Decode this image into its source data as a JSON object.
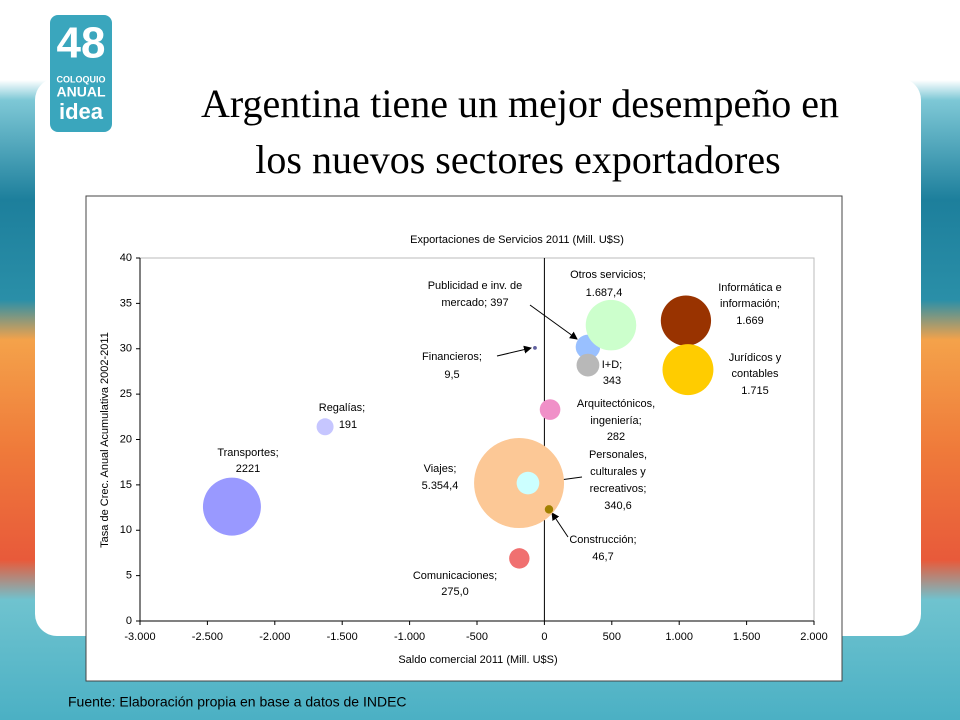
{
  "slide_title": [
    "Argentina tiene un mejor desempeño en",
    "los nuevos sectores exportadores"
  ],
  "logo": {
    "number": "48",
    "line1": "COLOQUIO",
    "line2": "ANUAL",
    "brand": "idea"
  },
  "source": "Fuente: Elaboración propia en base a datos de INDEC",
  "chart_data": {
    "type": "bubble",
    "title": "Exportaciones de Servicios 2011 (Mill. U$S)",
    "x_label": "Saldo comercial 2011 (Mill. U$S)",
    "y_label": "Tasa de Crec. Anual Acumulativa 2002-2011",
    "xlim": [
      -3000,
      2000
    ],
    "xticks": [
      {
        "value": -3000,
        "label": "-3.000"
      },
      {
        "value": -2500,
        "label": "-2.500"
      },
      {
        "value": -2000,
        "label": "-2.000"
      },
      {
        "value": -1500,
        "label": "-1.500"
      },
      {
        "value": -1000,
        "label": "-1.000"
      },
      -500,
      0,
      500,
      {
        "value": 1000,
        "label": "1.000"
      },
      {
        "value": 1500,
        "label": "1.500"
      },
      {
        "value": 2000,
        "label": "2.000"
      }
    ],
    "ylim": [
      0,
      40
    ],
    "yticks": [
      0,
      5,
      10,
      15,
      20,
      25,
      30,
      35,
      40
    ],
    "points": [
      {
        "label": [
          "Transportes;",
          "2221"
        ],
        "x": -2318,
        "y": 12.6,
        "size": 2221,
        "color": "#9999ff"
      },
      {
        "label": [
          "Regalías;",
          "191"
        ],
        "x": -1627,
        "y": 21.4,
        "size": 191,
        "color": "#c6c6ff"
      },
      {
        "label": [
          "Comunicaciones;",
          "275,0"
        ],
        "x": -186,
        "y": 6.9,
        "size": 275.0,
        "color": "#f07070"
      },
      {
        "label": [
          "Viajes;",
          "5.354,4"
        ],
        "x": -188,
        "y": 15.2,
        "size": 5354.4,
        "color": "#fcc896"
      },
      {
        "label": [
          "Personales,",
          "culturales y",
          "recreativos;",
          "340,6"
        ],
        "x": -122,
        "y": 15.2,
        "size": 340.6,
        "color": "#ccffff"
      },
      {
        "label": [
          "Construcción;",
          "46,7"
        ],
        "x": 34,
        "y": 12.3,
        "size": 46.7,
        "color": "#a08000"
      },
      {
        "label": [
          "Arquitectónicos,",
          "ingeniería;",
          "282"
        ],
        "x": 42,
        "y": 23.3,
        "size": 282,
        "color": "#f090c8"
      },
      {
        "label": [
          "Financieros;",
          "9,5"
        ],
        "x": -70,
        "y": 30.1,
        "size": 9.5,
        "color": "#6060a0"
      },
      {
        "label": [
          "Publicidad e inv. de",
          "mercado; 397"
        ],
        "x": 323,
        "y": 30.2,
        "size": 397,
        "color": "#99c0ff"
      },
      {
        "label": [
          "I+D;",
          "343"
        ],
        "x": 323,
        "y": 28.2,
        "size": 343,
        "color": "#b8b8b8"
      },
      {
        "label": [
          "Otros servicios;",
          "1.687,4"
        ],
        "x": 494,
        "y": 32.6,
        "size": 1687.4,
        "color": "#ccffcc"
      },
      {
        "label": [
          "Informática e",
          "información;",
          "1.669"
        ],
        "x": 1050,
        "y": 33.1,
        "size": 1669,
        "color": "#993300"
      },
      {
        "label": [
          "Jurídicos y",
          "contables",
          "1.715"
        ],
        "x": 1065,
        "y": 27.7,
        "size": 1715,
        "color": "#ffcc00"
      }
    ]
  }
}
